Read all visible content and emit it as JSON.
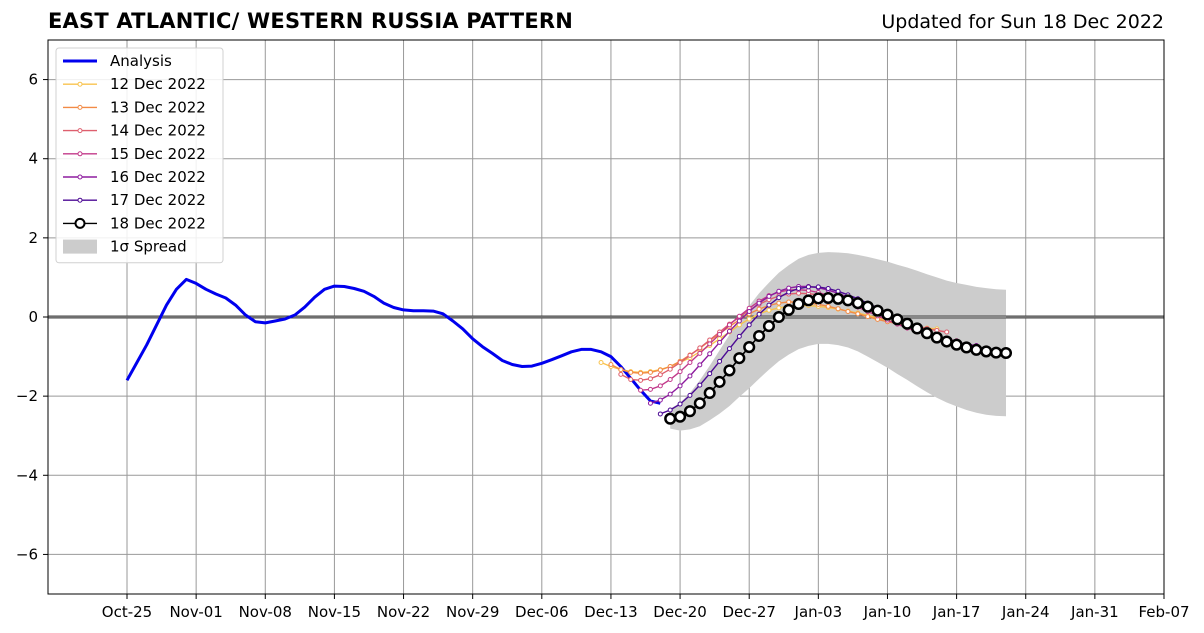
{
  "chart_data": {
    "type": "line",
    "title": "EAST ATLANTIC/ WESTERN RUSSIA PATTERN",
    "subtitle": "Updated for Sun 18 Dec 2022",
    "xlabel": "",
    "ylabel": "",
    "ylim": [
      -7,
      7
    ],
    "xlim": [
      "2022-10-17",
      "2023-02-07"
    ],
    "yticks": [
      -6,
      -4,
      -2,
      0,
      2,
      4,
      6
    ],
    "yticklabels": [
      "−6",
      "−4",
      "−2",
      "0",
      "2",
      "4",
      "6"
    ],
    "xticks": [
      {
        "date": "2022-10-25",
        "label": "Oct-25"
      },
      {
        "date": "2022-11-01",
        "label": "Nov-01"
      },
      {
        "date": "2022-11-08",
        "label": "Nov-08"
      },
      {
        "date": "2022-11-15",
        "label": "Nov-15"
      },
      {
        "date": "2022-11-22",
        "label": "Nov-22"
      },
      {
        "date": "2022-11-29",
        "label": "Nov-29"
      },
      {
        "date": "2022-12-06",
        "label": "Dec-06"
      },
      {
        "date": "2022-12-13",
        "label": "Dec-13"
      },
      {
        "date": "2022-12-20",
        "label": "Dec-20"
      },
      {
        "date": "2022-12-27",
        "label": "Dec-27"
      },
      {
        "date": "2023-01-03",
        "label": "Jan-03"
      },
      {
        "date": "2023-01-10",
        "label": "Jan-10"
      },
      {
        "date": "2023-01-17",
        "label": "Jan-17"
      },
      {
        "date": "2023-01-24",
        "label": "Jan-24"
      },
      {
        "date": "2023-01-31",
        "label": "Jan-31"
      },
      {
        "date": "2023-02-07",
        "label": "Feb-07"
      }
    ],
    "grid": true,
    "legend_position": "top-left",
    "analysis": {
      "name": "Analysis",
      "color": "#0000ee",
      "start": "2022-10-25",
      "values": [
        -1.6,
        -1.15,
        -0.7,
        -0.2,
        0.3,
        0.7,
        0.95,
        0.85,
        0.7,
        0.58,
        0.48,
        0.3,
        0.05,
        -0.12,
        -0.15,
        -0.1,
        -0.05,
        0.05,
        0.25,
        0.5,
        0.7,
        0.78,
        0.77,
        0.72,
        0.65,
        0.52,
        0.35,
        0.24,
        0.18,
        0.16,
        0.16,
        0.15,
        0.08,
        -0.1,
        -0.3,
        -0.55,
        -0.75,
        -0.92,
        -1.1,
        -1.2,
        -1.25,
        -1.24,
        -1.17,
        -1.08,
        -0.98,
        -0.88,
        -0.82,
        -0.82,
        -0.88,
        -1.0,
        -1.25,
        -1.55,
        -1.85,
        -2.12,
        -2.18
      ]
    },
    "forecasts": [
      {
        "name": "12 Dec 2022",
        "color": "#f8c34e",
        "start": "2022-12-12",
        "values": [
          -1.15,
          -1.25,
          -1.33,
          -1.38,
          -1.4,
          -1.38,
          -1.33,
          -1.25,
          -1.15,
          -1.03,
          -0.88,
          -0.72,
          -0.55,
          -0.38,
          -0.2,
          -0.05,
          0.08,
          0.17,
          0.23,
          0.27,
          0.29,
          0.29,
          0.27,
          0.24,
          0.2,
          0.15,
          0.1,
          0.04,
          -0.02,
          -0.08,
          -0.14,
          -0.2,
          -0.25,
          -0.28,
          -0.3
        ]
      },
      {
        "name": "13 Dec 2022",
        "color": "#f28b46",
        "start": "2022-12-13",
        "values": [
          -1.2,
          -1.33,
          -1.4,
          -1.42,
          -1.4,
          -1.34,
          -1.25,
          -1.12,
          -0.96,
          -0.79,
          -0.6,
          -0.42,
          -0.24,
          -0.07,
          0.08,
          0.2,
          0.29,
          0.35,
          0.38,
          0.38,
          0.36,
          0.32,
          0.27,
          0.21,
          0.14,
          0.08,
          0.01,
          -0.06,
          -0.12,
          -0.17,
          -0.2,
          -0.22
        ]
      },
      {
        "name": "14 Dec 2022",
        "color": "#de5f6e",
        "start": "2022-12-14",
        "values": [
          -1.45,
          -1.58,
          -1.6,
          -1.56,
          -1.46,
          -1.32,
          -1.15,
          -0.97,
          -0.78,
          -0.58,
          -0.38,
          -0.18,
          0.0,
          0.17,
          0.32,
          0.44,
          0.53,
          0.58,
          0.6,
          0.59,
          0.56,
          0.51,
          0.44,
          0.36,
          0.27,
          0.18,
          0.09,
          0.0,
          -0.08,
          -0.16,
          -0.23,
          -0.29,
          -0.34,
          -0.38
        ]
      },
      {
        "name": "15 Dec 2022",
        "color": "#c2398a",
        "start": "2022-12-16",
        "values": [
          -1.85,
          -1.83,
          -1.74,
          -1.58,
          -1.38,
          -1.15,
          -0.92,
          -0.68,
          -0.44,
          -0.2,
          0.02,
          0.22,
          0.4,
          0.54,
          0.63,
          0.68,
          0.69,
          0.67,
          0.62,
          0.55,
          0.46,
          0.36,
          0.25,
          0.14,
          0.03,
          -0.08,
          -0.18,
          -0.28,
          -0.37,
          -0.45,
          -0.52,
          -0.57,
          -0.6
        ]
      },
      {
        "name": "16 Dec 2022",
        "color": "#8e1d9f",
        "start": "2022-12-17",
        "values": [
          -2.18,
          -2.1,
          -1.95,
          -1.74,
          -1.49,
          -1.21,
          -0.93,
          -0.64,
          -0.36,
          -0.1,
          0.14,
          0.35,
          0.52,
          0.65,
          0.73,
          0.77,
          0.77,
          0.74,
          0.68,
          0.6,
          0.5,
          0.39,
          0.27,
          0.15,
          0.03,
          -0.09,
          -0.2,
          -0.31,
          -0.41,
          -0.5,
          -0.58,
          -0.64,
          -0.69,
          -0.72
        ]
      },
      {
        "name": "17 Dec 2022",
        "color": "#4c0a94",
        "start": "2022-12-18",
        "values": [
          -2.45,
          -2.35,
          -2.2,
          -1.98,
          -1.72,
          -1.43,
          -1.12,
          -0.8,
          -0.49,
          -0.2,
          0.07,
          0.3,
          0.49,
          0.63,
          0.72,
          0.76,
          0.76,
          0.72,
          0.65,
          0.56,
          0.46,
          0.35,
          0.23,
          0.1,
          -0.03,
          -0.16,
          -0.28,
          -0.4,
          -0.51,
          -0.6,
          -0.68,
          -0.74,
          -0.78
        ]
      },
      {
        "name": "18 Dec 2022",
        "color": "#000000",
        "start": "2022-12-19",
        "values": [
          -2.57,
          -2.52,
          -2.38,
          -2.18,
          -1.92,
          -1.64,
          -1.35,
          -1.04,
          -0.76,
          -0.48,
          -0.23,
          0.0,
          0.18,
          0.33,
          0.42,
          0.47,
          0.48,
          0.46,
          0.42,
          0.35,
          0.26,
          0.16,
          0.06,
          -0.06,
          -0.17,
          -0.29,
          -0.41,
          -0.52,
          -0.62,
          -0.7,
          -0.77,
          -0.83,
          -0.87,
          -0.9,
          -0.91
        ]
      }
    ],
    "spread": {
      "name": "1σ Spread",
      "color": "#cccccc",
      "start": "2022-12-19",
      "center": [
        -2.57,
        -2.52,
        -2.38,
        -2.18,
        -1.92,
        -1.64,
        -1.35,
        -1.04,
        -0.76,
        -0.48,
        -0.23,
        0.0,
        0.18,
        0.33,
        0.42,
        0.47,
        0.48,
        0.46,
        0.42,
        0.35,
        0.26,
        0.16,
        0.06,
        -0.06,
        -0.17,
        -0.29,
        -0.41,
        -0.52,
        -0.62,
        -0.7,
        -0.77,
        -0.83,
        -0.87,
        -0.9,
        -0.91
      ],
      "halfwidth": [
        0.25,
        0.35,
        0.46,
        0.58,
        0.69,
        0.8,
        0.9,
        0.98,
        1.04,
        1.08,
        1.1,
        1.12,
        1.13,
        1.14,
        1.15,
        1.15,
        1.16,
        1.17,
        1.19,
        1.22,
        1.26,
        1.3,
        1.34,
        1.38,
        1.42,
        1.46,
        1.49,
        1.52,
        1.54,
        1.56,
        1.58,
        1.59,
        1.6,
        1.6,
        1.6
      ]
    }
  }
}
